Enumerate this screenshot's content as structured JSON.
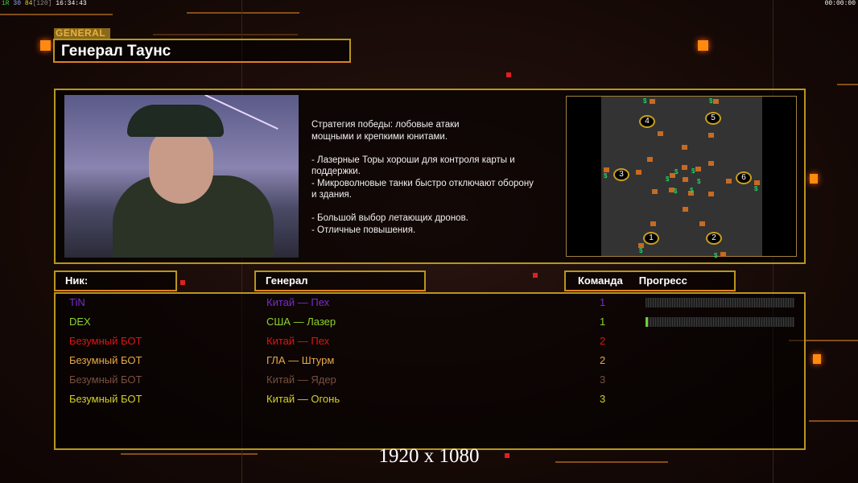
{
  "hud": {
    "left_r": "1R",
    "left_a": "30",
    "left_b": "84",
    "left_c": "[120]",
    "time": "16:34:43",
    "right_time": "00:00:00"
  },
  "tag": "GENERAL",
  "title": "Генерал Таунс",
  "description": "Стратегия победы: лобовые атаки\nмощными и крепкими юнитами.\n\n- Лазерные Торы хороши для контроля карты и\n поддержки.\n- Микроволновые танки быстро отключают оборону\n и здания.\n\n- Большой выбор летающих дронов.\n- Отличные повышения.",
  "map": {
    "start_positions": [
      "1",
      "2",
      "3",
      "4",
      "5",
      "6"
    ]
  },
  "headers": {
    "nick": "Ник:",
    "general": "Генерал",
    "team": "Команда",
    "progress": "Прогресс"
  },
  "players": [
    {
      "nick": "TiN",
      "general": "Китай — Пех",
      "team": "1",
      "color": "#7a2ad0",
      "progress": 0
    },
    {
      "nick": "DEX",
      "general": "США — Лазер",
      "team": "1",
      "color": "#8ed42a",
      "progress": 0.01
    },
    {
      "nick": "Безумный БОТ",
      "general": "Китай — Пех",
      "team": "2",
      "color": "#e01414",
      "progress": null
    },
    {
      "nick": "Безумный БОТ",
      "general": "ГЛА — Штурм",
      "team": "2",
      "color": "#e8a848",
      "progress": null
    },
    {
      "nick": "Безумный БОТ",
      "general": "Китай — Ядер",
      "team": "3",
      "color": "#7a5040",
      "progress": null
    },
    {
      "nick": "Безумный БОТ",
      "general": "Китай — Огонь",
      "team": "3",
      "color": "#d8d028",
      "progress": null
    }
  ],
  "resolution": "1920 x 1080"
}
